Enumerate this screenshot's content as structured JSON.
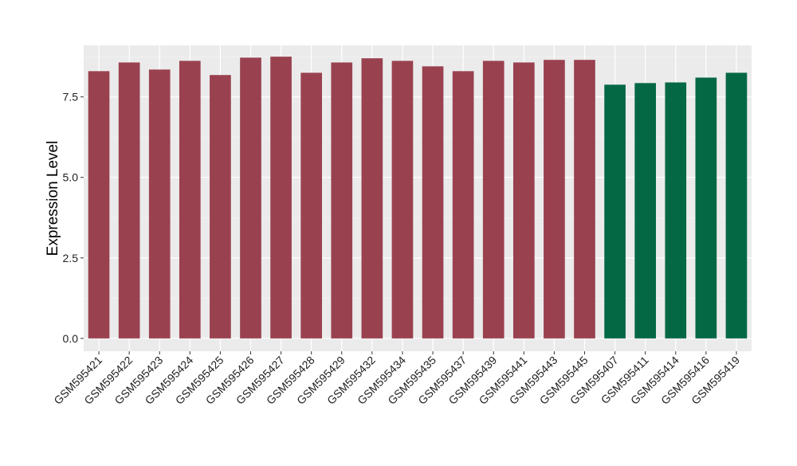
{
  "chart_data": {
    "type": "bar",
    "title": "",
    "xlabel": "",
    "ylabel": "Expression Level",
    "ylim": [
      -0.4,
      9.1
    ],
    "yticks": [
      0.0,
      2.5,
      5.0,
      7.5
    ],
    "ytick_labels": [
      "0.0",
      "2.5",
      "5.0",
      "7.5"
    ],
    "grid": true,
    "legend": "none",
    "background_color": "#EBEBEB",
    "categories": [
      "GSM595421",
      "GSM595422",
      "GSM595423",
      "GSM595424",
      "GSM595425",
      "GSM595426",
      "GSM595427",
      "GSM595428",
      "GSM595429",
      "GSM595432",
      "GSM595434",
      "GSM595435",
      "GSM595437",
      "GSM595439",
      "GSM595441",
      "GSM595443",
      "GSM595445",
      "GSM595407",
      "GSM595411",
      "GSM595414",
      "GSM595416",
      "GSM595419"
    ],
    "values": [
      8.3,
      8.57,
      8.35,
      8.62,
      8.18,
      8.72,
      8.75,
      8.25,
      8.57,
      8.7,
      8.62,
      8.45,
      8.3,
      8.62,
      8.57,
      8.65,
      8.65,
      7.88,
      7.93,
      7.95,
      8.1,
      8.25
    ],
    "groups": [
      "a",
      "a",
      "a",
      "a",
      "a",
      "a",
      "a",
      "a",
      "a",
      "a",
      "a",
      "a",
      "a",
      "a",
      "a",
      "a",
      "a",
      "b",
      "b",
      "b",
      "b",
      "b"
    ],
    "group_colors": {
      "a": "#9A4150",
      "b": "#046845"
    }
  }
}
